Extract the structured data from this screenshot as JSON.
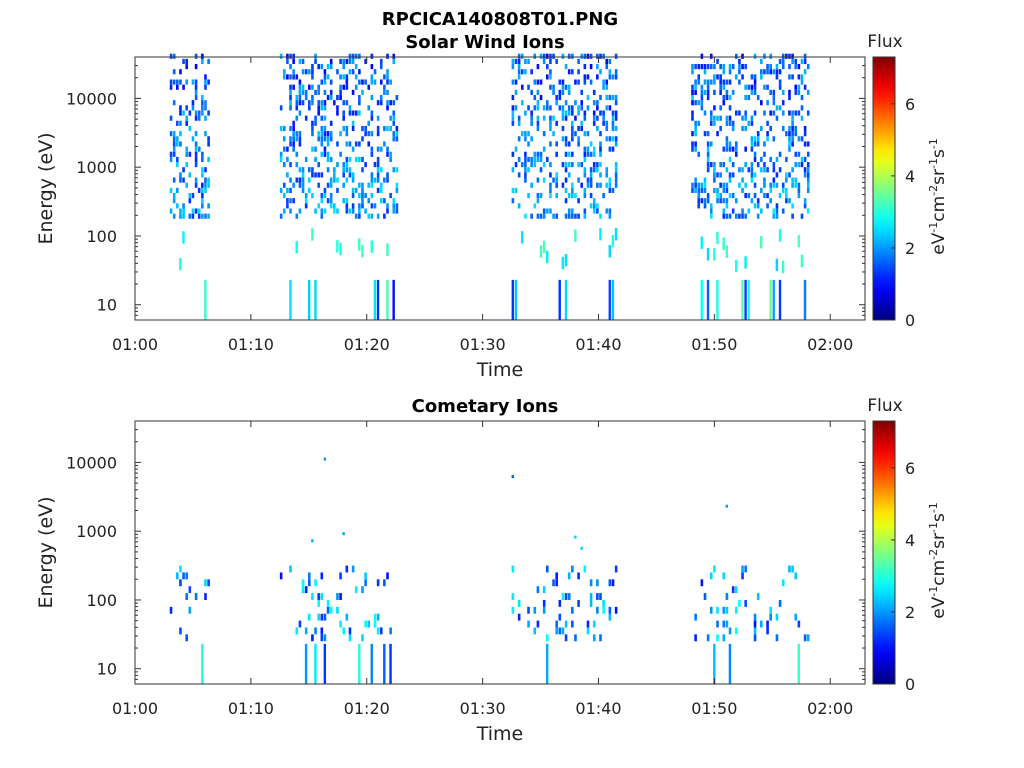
{
  "figure_title": "RPCICA140808T01.PNG",
  "chart_data": [
    {
      "type": "heatmap",
      "title": "Solar Wind Ions",
      "xlabel": "Time",
      "ylabel": "Energy (eV)",
      "x_range": [
        "01:00",
        "02:03"
      ],
      "x_ticks": [
        "01:00",
        "01:10",
        "01:20",
        "01:30",
        "01:40",
        "01:50",
        "02:00"
      ],
      "y_scale": "log",
      "y_range": [
        6,
        40000
      ],
      "y_ticks": [
        10,
        100,
        1000,
        10000
      ],
      "y_tick_labels": [
        "10",
        "100",
        "1000",
        "10000"
      ],
      "colorbar": {
        "label": "Flux",
        "unit_label": "eV-1cm-2sr-1s-1",
        "range": [
          0,
          7.3
        ],
        "ticks": [
          "0",
          "2",
          "4",
          "6"
        ],
        "colormap": "jet"
      },
      "grid": false,
      "bursts": [
        {
          "start": "01:03",
          "end": "01:06:30",
          "intensity": "flux ~1-3, high-energy to 40000 eV"
        },
        {
          "start": "01:12:30",
          "end": "01:22:30",
          "intensity": "flux ~1-3, high-energy to 40000 eV"
        },
        {
          "start": "01:32:30",
          "end": "01:41:30",
          "intensity": "flux ~1-3, high-energy to 40000 eV"
        },
        {
          "start": "01:48",
          "end": "01:58",
          "intensity": "flux ~1-3, high-energy to 40000 eV"
        }
      ]
    },
    {
      "type": "heatmap",
      "title": "Cometary Ions",
      "xlabel": "Time",
      "ylabel": "Energy (eV)",
      "x_range": [
        "01:00",
        "02:03"
      ],
      "x_ticks": [
        "01:00",
        "01:10",
        "01:20",
        "01:30",
        "01:40",
        "01:50",
        "02:00"
      ],
      "y_scale": "log",
      "y_range": [
        6,
        40000
      ],
      "y_ticks": [
        10,
        100,
        1000,
        10000
      ],
      "y_tick_labels": [
        "10",
        "100",
        "1000",
        "10000"
      ],
      "colorbar": {
        "label": "Flux",
        "unit_label": "eV-1cm-2sr-1s-1",
        "range": [
          0,
          7.3
        ],
        "ticks": [
          "0",
          "2",
          "4",
          "6"
        ],
        "colormap": "jet"
      },
      "grid": false,
      "bursts": [
        {
          "start": "01:03",
          "end": "01:06:30",
          "intensity": "flux ~1-3, mostly below 300 eV"
        },
        {
          "start": "01:12:30",
          "end": "01:22:30",
          "intensity": "flux ~1-3, mostly below 300 eV"
        },
        {
          "start": "01:32:30",
          "end": "01:41:30",
          "intensity": "flux ~1-3, mostly below 300 eV"
        },
        {
          "start": "01:48",
          "end": "01:58",
          "intensity": "flux ~1-3, mostly below 300 eV"
        }
      ]
    }
  ]
}
